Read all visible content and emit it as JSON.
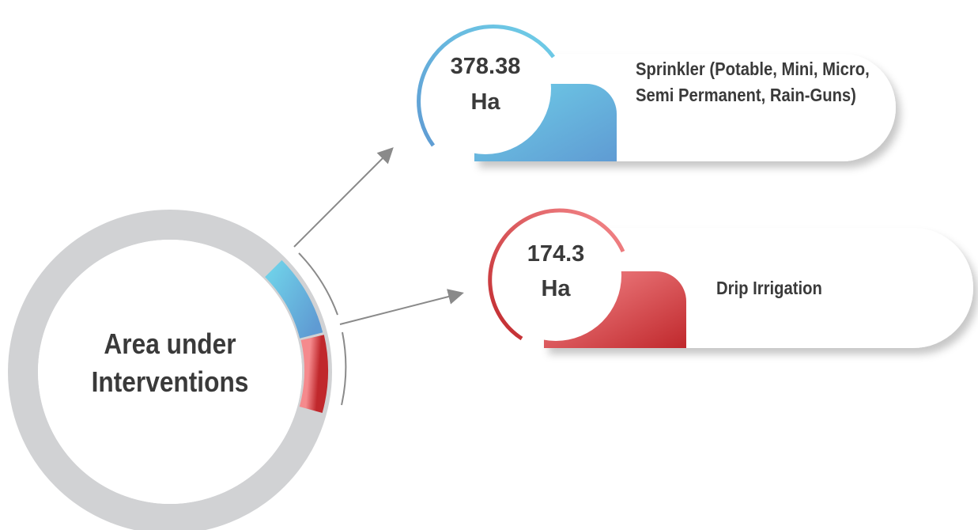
{
  "center": {
    "label": "Area under Interventions"
  },
  "items": [
    {
      "value": "378.38",
      "unit": "Ha",
      "label": "Sprinkler (Potable, Mini, Micro, Semi Permanent, Rain-Guns)"
    },
    {
      "value": "174.3",
      "unit": "Ha",
      "label": "Drip Irrigation"
    }
  ]
}
